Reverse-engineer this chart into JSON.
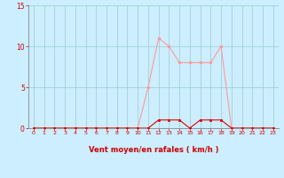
{
  "hours": [
    0,
    1,
    2,
    3,
    4,
    5,
    6,
    7,
    8,
    9,
    10,
    11,
    12,
    13,
    14,
    15,
    16,
    17,
    18,
    19,
    20,
    21,
    22,
    23
  ],
  "vent_moyen": [
    0,
    0,
    0,
    0,
    0,
    0,
    0,
    0,
    0,
    0,
    0,
    5,
    11,
    10,
    8,
    8,
    8,
    8,
    10,
    0,
    0,
    0,
    0,
    0
  ],
  "rafales": [
    0,
    0,
    0,
    0,
    0,
    0,
    0,
    0,
    0,
    0,
    0,
    0,
    1,
    1,
    1,
    0,
    1,
    1,
    1,
    0,
    0,
    0,
    0,
    0
  ],
  "bg_color": "#cceeff",
  "grid_color": "#99cccc",
  "line_color_moyen": "#ff9999",
  "line_color_rafales": "#dd0000",
  "marker_color_moyen": "#ff9999",
  "marker_color_rafales": "#dd0000",
  "xlabel": "Vent moyen/en rafales ( km/h )",
  "xlabel_color": "#cc0000",
  "tick_color": "#cc0000",
  "spine_color": "#888888",
  "ylim": [
    0,
    15
  ],
  "yticks": [
    0,
    5,
    10,
    15
  ],
  "xticks": [
    0,
    1,
    2,
    3,
    4,
    5,
    6,
    7,
    8,
    9,
    10,
    11,
    12,
    13,
    14,
    15,
    16,
    17,
    18,
    19,
    20,
    21,
    22,
    23
  ]
}
